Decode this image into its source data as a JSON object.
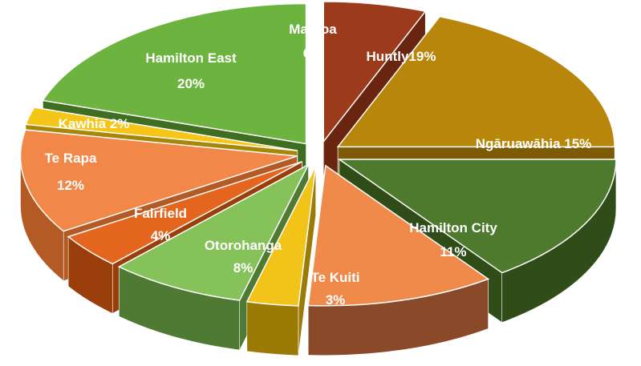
{
  "chart_data": {
    "type": "pie",
    "title": "",
    "legend": "none",
    "slices": [
      {
        "name": "Maeroa",
        "value": 6,
        "label_line1": "Maeroa",
        "label_line2": "6%",
        "color": "#9c3b1c",
        "side": "#6a2510"
      },
      {
        "name": "Huntly",
        "value": 19,
        "label_line1": "Huntly19%",
        "label_line2": "",
        "color": "#b8860b",
        "side": "#7d5a06"
      },
      {
        "name": "Ngāruawāhia",
        "value": 15,
        "label_line1": "Ngāruawāhia 15%",
        "label_line2": "",
        "color": "#4e7a2e",
        "side": "#2f4c19"
      },
      {
        "name": "Hamilton City",
        "value": 11,
        "label_line1": "Hamilton City",
        "label_line2": "11%",
        "color": "#f08a4b",
        "side": "#8a4a2a"
      },
      {
        "name": "Te Kuiti",
        "value": 3,
        "label_line1": "Te Kuiti",
        "label_line2": "3%",
        "color": "#f2c318",
        "side": "#9c7a06"
      },
      {
        "name": "Otorohanga",
        "value": 8,
        "label_line1": "Otorohanga",
        "label_line2": "8%",
        "color": "#86c25a",
        "side": "#4f7a33"
      },
      {
        "name": "Fairfield",
        "value": 4,
        "label_line1": "Fairfield",
        "label_line2": "4%",
        "color": "#e4661e",
        "side": "#9a3f0b"
      },
      {
        "name": "Te Rapa",
        "value": 12,
        "label_line1": "Te Rapa",
        "label_line2": "12%",
        "color": "#f2874a",
        "side": "#b45a24"
      },
      {
        "name": "Kawhia",
        "value": 2,
        "label_line1": "Kawhia 2%",
        "label_line2": "",
        "color": "#f5c518",
        "side": "#a88608"
      },
      {
        "name": "Hamilton East",
        "value": 20,
        "label_line1": "Hamilton East",
        "label_line2": "20%",
        "color": "#6db33f",
        "side": "#3f6d22"
      }
    ]
  }
}
